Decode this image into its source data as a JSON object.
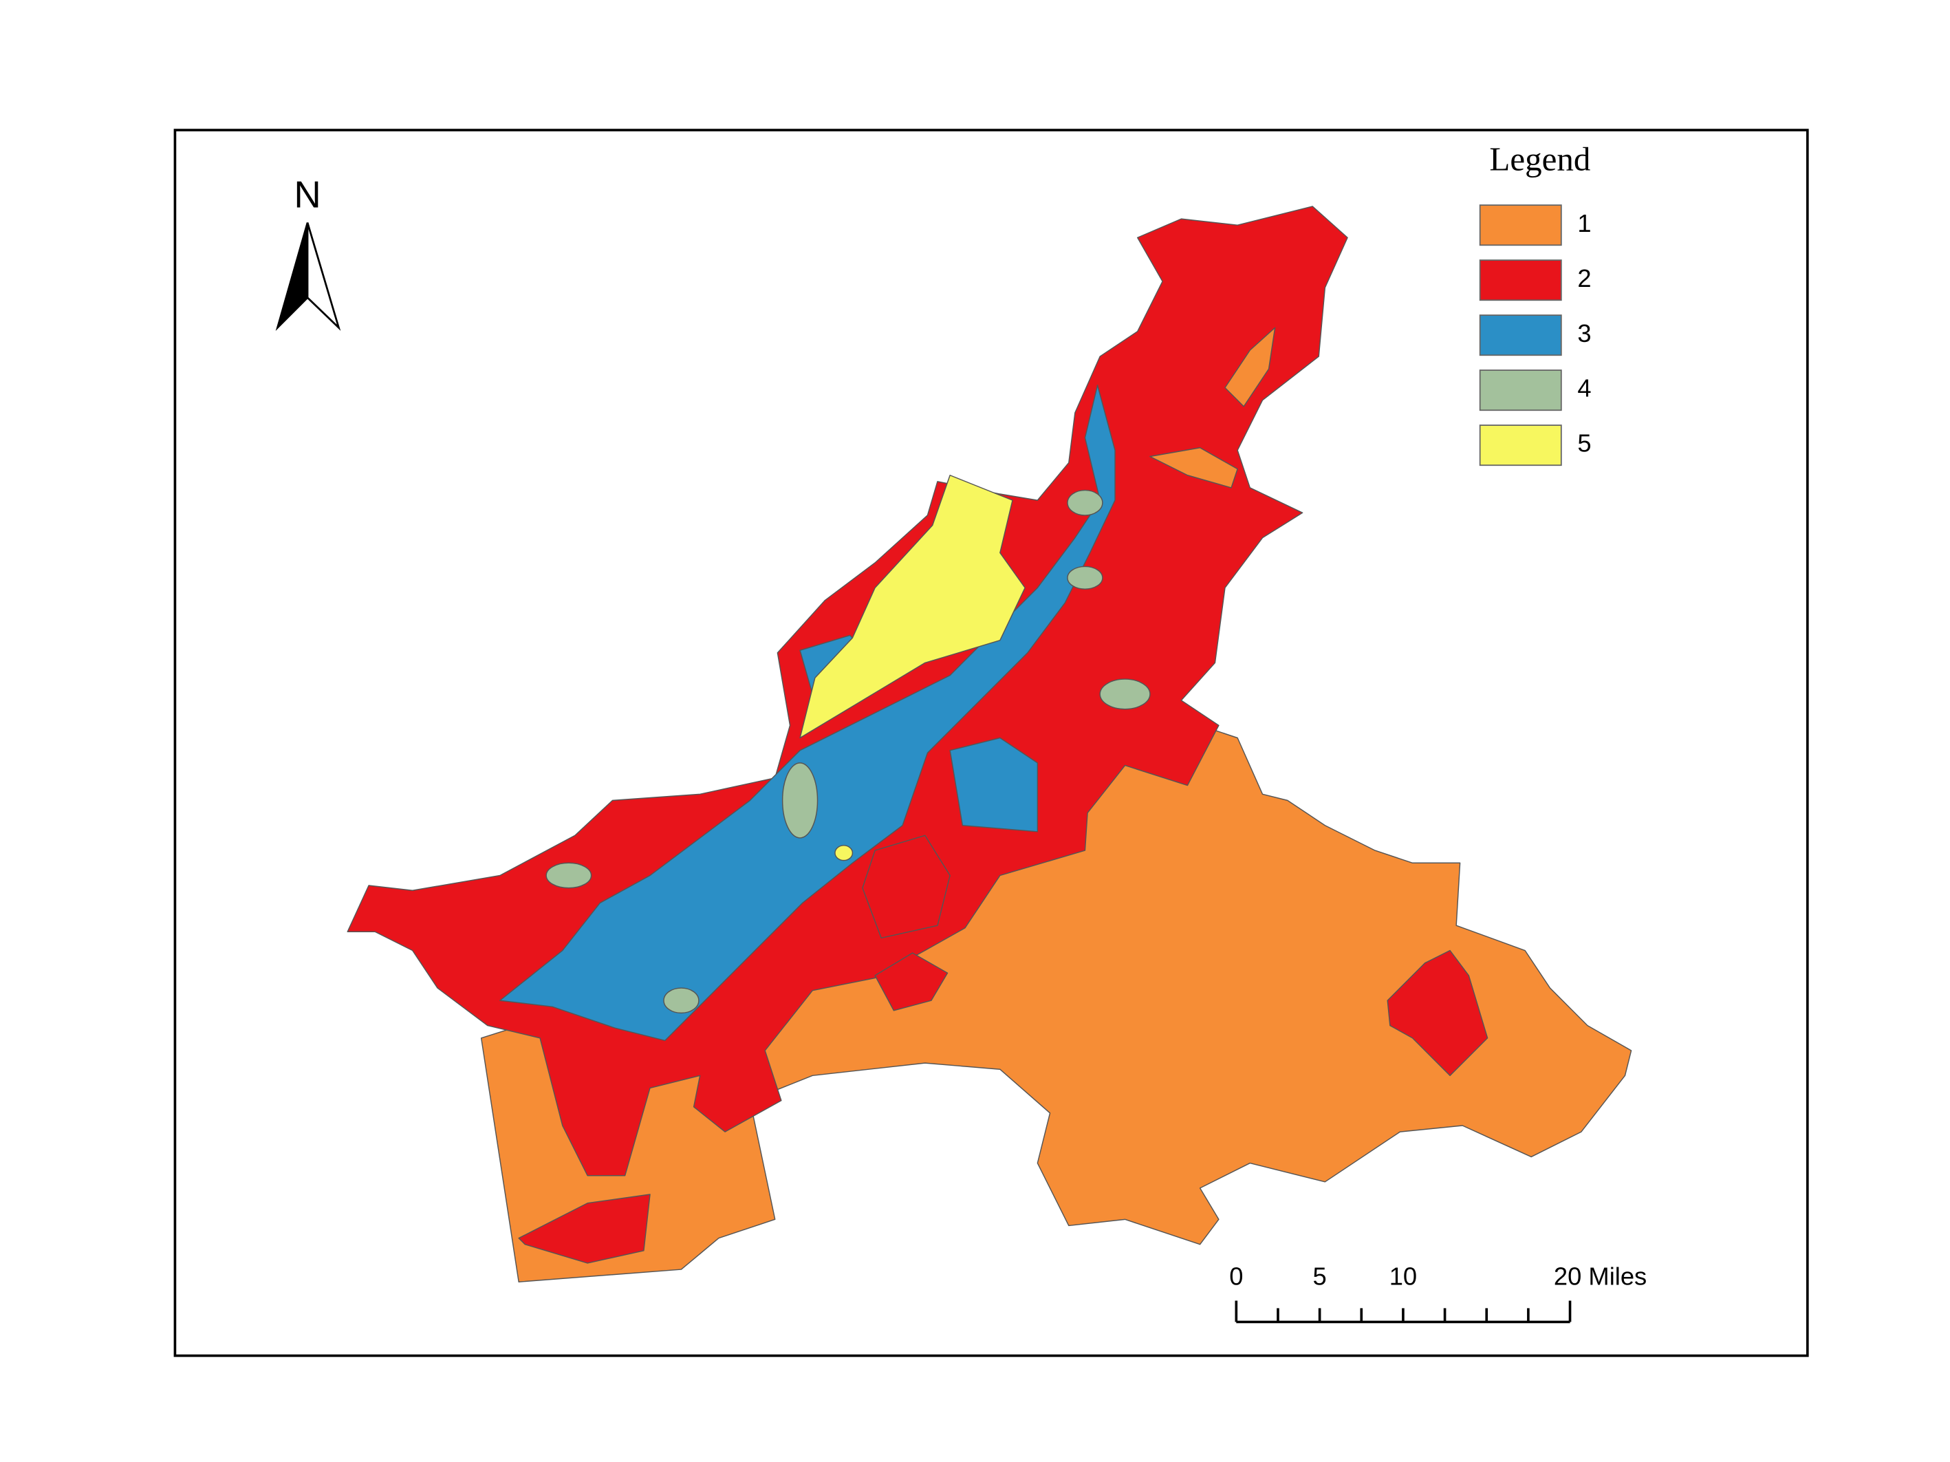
{
  "north_arrow": {
    "label": "N"
  },
  "legend": {
    "title": "Legend",
    "items": [
      {
        "label": "1",
        "color": "#f68d36"
      },
      {
        "label": "2",
        "color": "#e8141b"
      },
      {
        "label": "3",
        "color": "#2b8fc6"
      },
      {
        "label": "4",
        "color": "#a3c19c"
      },
      {
        "label": "5",
        "color": "#f7f75f"
      }
    ]
  },
  "scale_bar": {
    "labels": [
      "0",
      "5",
      "10",
      "20 Miles"
    ]
  }
}
